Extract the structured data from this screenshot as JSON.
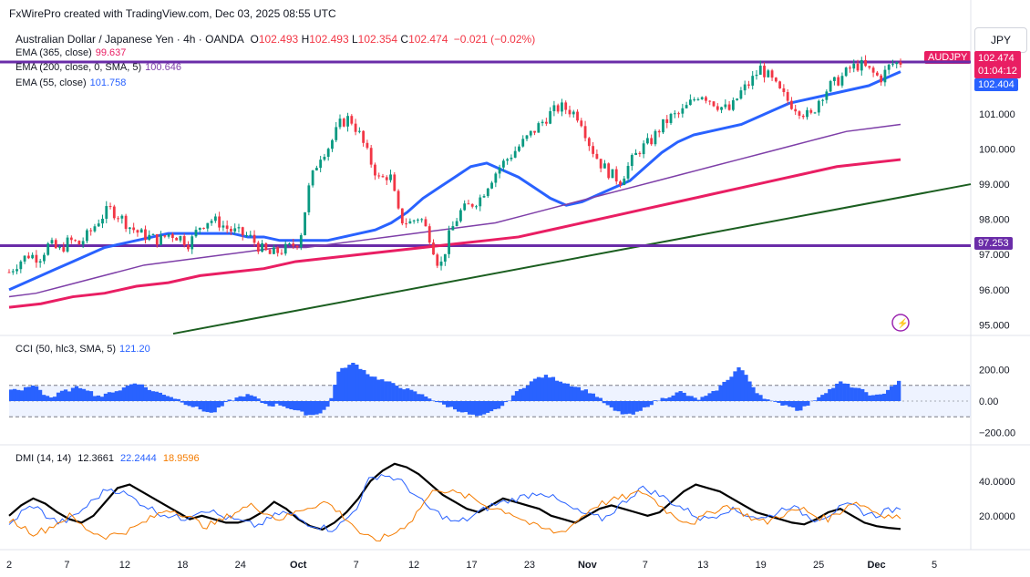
{
  "header": {
    "source": "FxWirePro created with TradingView.com, Dec 03, 2025 08:55 UTC"
  },
  "instrument": {
    "name": "Australian Dollar / Japanese Yen · 4h · OANDA",
    "o_label": "O",
    "o": "102.493",
    "h_label": "H",
    "h": "102.493",
    "l_label": "L",
    "l": "102.354",
    "c_label": "C",
    "c": "102.474",
    "change": "−0.021 (−0.02%)",
    "currency": "JPY",
    "symbol_tag": "AUDJPY",
    "price_tag": "102.474",
    "countdown": "01:04:12"
  },
  "indicators": {
    "ema365": {
      "label": "EMA (365, close)",
      "value": "99.637",
      "color": "#e91e63"
    },
    "ema200": {
      "label": "EMA (200, close, 0, SMA, 5)",
      "value": "100.646",
      "color": "#7e3fa8"
    },
    "ema55": {
      "label": "EMA (55, close)",
      "value": "101.758",
      "color": "#2962ff"
    },
    "ema55_tag": "102.404",
    "level_tag": "97.253",
    "cci": {
      "label": "CCI (50, hlc3, SMA, 5)",
      "value": "121.20"
    },
    "dmi": {
      "label": "DMI (14, 14)",
      "adx": "12.3661",
      "plus_di": "22.2444",
      "minus_di": "18.9596"
    }
  },
  "colors": {
    "up": "#089981",
    "down": "#f23645",
    "level": "#6a2ca8",
    "trend": "#1b5e20",
    "cci": "#2962ff",
    "adx": "#000000",
    "plus_di": "#2962ff",
    "minus_di": "#f57c00",
    "ema55_tag_bg": "#2962ff",
    "level_tag_bg": "#6a2ca8",
    "price_tag_bg": "#e91e63"
  },
  "chart_data": [
    {
      "type": "candlestick",
      "title": "Australian Dollar / Japanese Yen · 4h · OANDA",
      "x_ticks": [
        "2",
        "7",
        "12",
        "18",
        "24",
        "Oct",
        "7",
        "12",
        "17",
        "23",
        "Nov",
        "7",
        "13",
        "19",
        "25",
        "Dec",
        "5"
      ],
      "y_ticks": [
        "95.000",
        "96.000",
        "97.000",
        "98.000",
        "99.000",
        "100.000",
        "101.000"
      ],
      "ylim": [
        94.7,
        103.2
      ],
      "horizontal_levels": [
        102.474,
        97.253
      ],
      "trendline": {
        "from": [
          "Sep 4",
          94.75
        ],
        "to": [
          "Dec 8",
          99.0
        ]
      },
      "close_path": [
        96.5,
        96.8,
        97.0,
        96.9,
        97.3,
        97.1,
        97.4,
        97.3,
        97.6,
        98.0,
        98.3,
        98.1,
        97.8,
        97.6,
        97.5,
        97.4,
        97.6,
        97.5,
        97.3,
        97.8,
        98.0,
        97.9,
        97.7,
        97.6,
        97.5,
        97.2,
        97.0,
        97.1,
        97.2,
        97.4,
        99.0,
        99.8,
        100.1,
        100.7,
        100.9,
        100.4,
        99.7,
        99.1,
        99.3,
        98.0,
        97.9,
        98.1,
        97.5,
        96.6,
        97.6,
        98.2,
        98.4,
        98.6,
        99.1,
        99.5,
        99.8,
        100.1,
        100.4,
        100.7,
        101.0,
        101.2,
        101.1,
        100.9,
        100.1,
        99.6,
        99.3,
        99.1,
        99.6,
        100.0,
        100.2,
        100.6,
        100.9,
        101.0,
        101.3,
        101.6,
        101.4,
        101.2,
        101.1,
        101.6,
        101.9,
        102.3,
        102.0,
        101.6,
        101.3,
        101.1,
        100.9,
        101.5,
        101.8,
        102.0,
        102.3,
        102.4,
        102.2,
        102.0,
        102.4,
        102.47
      ],
      "series": [
        {
          "name": "EMA (55, close)",
          "values": [
            96.0,
            96.2,
            96.4,
            96.6,
            96.8,
            97.0,
            97.2,
            97.3,
            97.4,
            97.5,
            97.6,
            97.6,
            97.6,
            97.6,
            97.6,
            97.5,
            97.5,
            97.4,
            97.4,
            97.4,
            97.4,
            97.5,
            97.6,
            97.7,
            97.9,
            98.2,
            98.6,
            98.9,
            99.2,
            99.5,
            99.6,
            99.4,
            99.2,
            98.9,
            98.6,
            98.4,
            98.5,
            98.7,
            98.9,
            99.1,
            99.5,
            99.9,
            100.2,
            100.4,
            100.5,
            100.6,
            100.7,
            100.9,
            101.1,
            101.3,
            101.4,
            101.5,
            101.6,
            101.7,
            101.8,
            102.0,
            102.2
          ]
        },
        {
          "name": "EMA (200, close, 0, SMA, 5)",
          "values": [
            95.8,
            95.9,
            96.1,
            96.3,
            96.5,
            96.7,
            96.8,
            96.9,
            97.0,
            97.1,
            97.2,
            97.2,
            97.3,
            97.4,
            97.5,
            97.6,
            97.7,
            97.8,
            97.9,
            98.1,
            98.3,
            98.5,
            98.7,
            98.9,
            99.1,
            99.3,
            99.5,
            99.7,
            99.9,
            100.1,
            100.3,
            100.5,
            100.6,
            100.7
          ]
        },
        {
          "name": "EMA (365, close)",
          "values": [
            95.5,
            95.6,
            95.8,
            95.9,
            96.1,
            96.2,
            96.4,
            96.5,
            96.6,
            96.8,
            96.9,
            97.0,
            97.1,
            97.2,
            97.3,
            97.4,
            97.5,
            97.7,
            97.9,
            98.1,
            98.3,
            98.5,
            98.7,
            98.9,
            99.1,
            99.3,
            99.5,
            99.6,
            99.7
          ]
        }
      ]
    },
    {
      "type": "bar",
      "title": "CCI (50, hlc3, SMA, 5)",
      "y_ticks": [
        "200.00",
        "0.00",
        "−200.00"
      ],
      "ylim": [
        -260,
        260
      ],
      "bands": [
        100,
        -100
      ],
      "values": [
        80,
        60,
        90,
        100,
        40,
        20,
        60,
        70,
        90,
        80,
        40,
        30,
        60,
        70,
        100,
        120,
        90,
        60,
        50,
        30,
        10,
        -20,
        -40,
        -60,
        -80,
        -40,
        0,
        20,
        40,
        30,
        -10,
        -30,
        -20,
        -40,
        -60,
        -80,
        -90,
        -70,
        -30,
        180,
        220,
        240,
        200,
        160,
        140,
        120,
        100,
        80,
        60,
        40,
        20,
        -10,
        -30,
        -50,
        -70,
        -90,
        -100,
        -80,
        -50,
        -20,
        40,
        80,
        120,
        150,
        160,
        140,
        120,
        100,
        80,
        60,
        30,
        -20,
        -60,
        -80,
        -90,
        -70,
        -30,
        0,
        20,
        40,
        60,
        30,
        10,
        30,
        60,
        110,
        160,
        220,
        140,
        60,
        20,
        -10,
        -20,
        -30,
        -60,
        -30,
        10,
        50,
        80,
        120,
        100,
        80,
        60,
        30,
        40,
        90,
        121.2
      ]
    },
    {
      "type": "line",
      "title": "DMI (14, 14)",
      "y_ticks": [
        "20.0000",
        "40.0000"
      ],
      "ylim": [
        2,
        52
      ],
      "series": [
        {
          "name": "ADX",
          "values": [
            20,
            26,
            30,
            27,
            22,
            18,
            16,
            20,
            28,
            36,
            38,
            34,
            30,
            26,
            22,
            18,
            20,
            18,
            16,
            16,
            18,
            22,
            28,
            24,
            18,
            14,
            12,
            16,
            22,
            30,
            40,
            46,
            50,
            48,
            44,
            38,
            32,
            28,
            24,
            22,
            26,
            30,
            28,
            26,
            24,
            20,
            18,
            16,
            20,
            24,
            26,
            24,
            22,
            20,
            22,
            28,
            34,
            38,
            36,
            34,
            30,
            26,
            22,
            20,
            18,
            16,
            15,
            18,
            22,
            24,
            20,
            16,
            14,
            13,
            12.37
          ]
        },
        {
          "name": "+DI",
          "values": [
            14,
            22,
            26,
            20,
            16,
            18,
            24,
            30,
            36,
            34,
            30,
            26,
            22,
            20,
            18,
            22,
            24,
            20,
            18,
            16,
            14,
            18,
            22,
            20,
            16,
            14,
            12,
            16,
            24,
            40,
            44,
            42,
            38,
            30,
            24,
            20,
            16,
            18,
            22,
            26,
            28,
            30,
            32,
            34,
            30,
            26,
            22,
            20,
            18,
            24,
            30,
            36,
            34,
            30,
            26,
            22,
            18,
            20,
            24,
            22,
            20,
            18,
            22,
            26,
            22,
            18,
            20,
            24,
            26,
            22,
            20,
            24,
            22.24
          ]
        },
        {
          "name": "−DI",
          "values": [
            18,
            14,
            10,
            12,
            16,
            20,
            14,
            10,
            8,
            10,
            12,
            16,
            20,
            24,
            22,
            18,
            14,
            16,
            20,
            24,
            26,
            22,
            18,
            20,
            24,
            26,
            28,
            22,
            16,
            8,
            6,
            8,
            12,
            18,
            28,
            36,
            34,
            32,
            30,
            26,
            24,
            22,
            18,
            14,
            12,
            10,
            14,
            20,
            26,
            28,
            30,
            32,
            34,
            28,
            22,
            18,
            16,
            20,
            24,
            26,
            22,
            18,
            16,
            20,
            22,
            24,
            20,
            18,
            22,
            28,
            26,
            22,
            20,
            18.96
          ]
        }
      ]
    }
  ]
}
